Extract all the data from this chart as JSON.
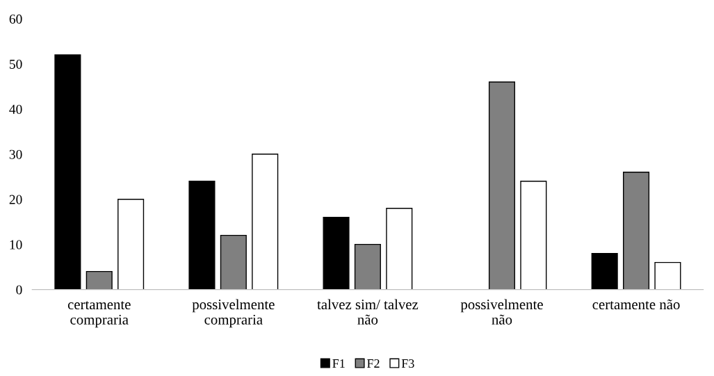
{
  "chart_data": {
    "type": "bar",
    "categories": [
      "certamente\ncompraria",
      "possivelmente\ncompraria",
      "talvez sim/ talvez\nnão",
      "possivelmente\nnão",
      "certamente não"
    ],
    "series": [
      {
        "name": "F1",
        "color": "#000000",
        "values": [
          52,
          24,
          16,
          0,
          8
        ]
      },
      {
        "name": "F2",
        "color": "#808080",
        "values": [
          4,
          12,
          10,
          46,
          26
        ]
      },
      {
        "name": "F3",
        "color": "#ffffff",
        "values": [
          20,
          30,
          18,
          24,
          6
        ]
      }
    ],
    "ylim": [
      0,
      60
    ],
    "yticks": [
      0,
      10,
      20,
      30,
      40,
      50,
      60
    ],
    "grid": false,
    "legend": "bottom"
  }
}
